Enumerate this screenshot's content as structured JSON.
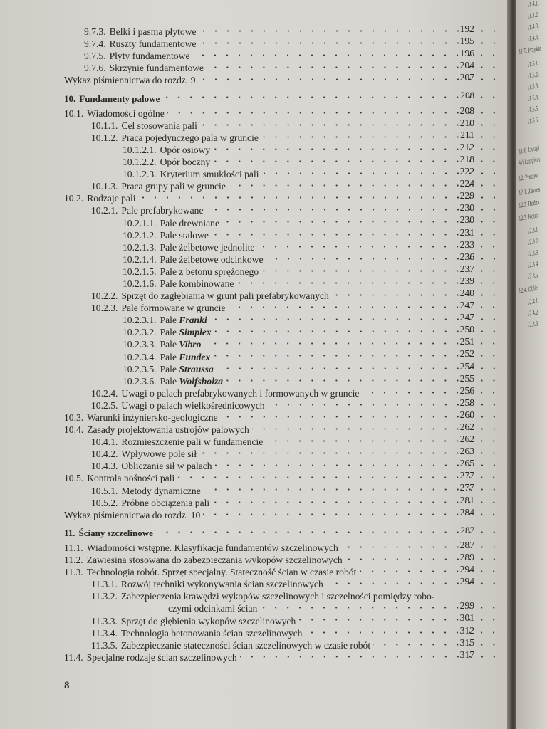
{
  "page_number": "8",
  "toc": [
    {
      "level": 1,
      "num": "9.7.3.",
      "title": "Belki i pasma płytowe",
      "page": "192"
    },
    {
      "level": 1,
      "num": "9.7.4.",
      "title": "Ruszty fundamentowe",
      "page": "195"
    },
    {
      "level": 1,
      "num": "9.7.5.",
      "title": "Płyty fundamentowe",
      "page": "196"
    },
    {
      "level": 1,
      "num": "9.7.6.",
      "title": "Skrzynie fundamentowe",
      "page": "204"
    },
    {
      "level": 0,
      "num": "",
      "title": "Wykaz piśmiennictwa do rozdz. 9",
      "page": "207"
    },
    {
      "level": 0,
      "num": "10.",
      "title": "Fundamenty palowe",
      "page": "208",
      "chapter": true
    },
    {
      "level": 0,
      "num": "10.1.",
      "title": "Wiadomości ogólne",
      "page": "208"
    },
    {
      "level": 2,
      "num": "10.1.1.",
      "title": "Cel stosowania pali",
      "page": "210"
    },
    {
      "level": 2,
      "num": "10.1.2.",
      "title": "Praca pojedynczego pala w gruncie",
      "page": "211"
    },
    {
      "level": 3,
      "num": "10.1.2.1.",
      "title": "Opór osiowy",
      "page": "212"
    },
    {
      "level": 3,
      "num": "10.1.2.2.",
      "title": "Opór boczny",
      "page": "218"
    },
    {
      "level": 3,
      "num": "10.1.2.3.",
      "title": "Kryterium smukłości pali",
      "page": "222"
    },
    {
      "level": 2,
      "num": "10.1.3.",
      "title": "Praca grupy pali w gruncie",
      "page": "224"
    },
    {
      "level": 0,
      "num": "10.2.",
      "title": "Rodzaje pali",
      "page": "229"
    },
    {
      "level": 2,
      "num": "10.2.1.",
      "title": "Pale prefabrykowane",
      "page": "230"
    },
    {
      "level": 3,
      "num": "10.2.1.1.",
      "title": "Pale drewniane",
      "page": "230"
    },
    {
      "level": 3,
      "num": "10.2.1.2.",
      "title": "Pale stalowe",
      "page": "231"
    },
    {
      "level": 3,
      "num": "10.2.1.3.",
      "title": "Pale żelbetowe jednolite",
      "page": "233"
    },
    {
      "level": 3,
      "num": "10.2.1.4.",
      "title": "Pale żelbetowe odcinkowe",
      "page": "236"
    },
    {
      "level": 3,
      "num": "10.2.1.5.",
      "title": "Pale z betonu sprężonego",
      "page": "237"
    },
    {
      "level": 3,
      "num": "10.2.1.6.",
      "title": "Pale kombinowane",
      "page": "239"
    },
    {
      "level": 2,
      "num": "10.2.2.",
      "title": "Sprzęt do zagłębiania w grunt pali prefabrykowanych",
      "page": "240"
    },
    {
      "level": 2,
      "num": "10.2.3.",
      "title": "Pale formowane w gruncie",
      "page": "247"
    },
    {
      "level": 3,
      "num": "10.2.3.1.",
      "title": "Pale",
      "italic": "Franki",
      "page": "247"
    },
    {
      "level": 3,
      "num": "10.2.3.2.",
      "title": "Pale",
      "italic": "Simplex",
      "page": "250"
    },
    {
      "level": 3,
      "num": "10.2.3.3.",
      "title": "Pale",
      "italic": "Vibro",
      "page": "251"
    },
    {
      "level": 3,
      "num": "10.2.3.4.",
      "title": "Pale",
      "italic": "Fundex",
      "page": "252"
    },
    {
      "level": 3,
      "num": "10.2.3.5.",
      "title": "Pale",
      "italic": "Straussa",
      "page": "254"
    },
    {
      "level": 3,
      "num": "10.2.3.6.",
      "title": "Pale",
      "italic": "Wolfsholza",
      "page": "255"
    },
    {
      "level": 2,
      "num": "10.2.4.",
      "title": "Uwagi o palach prefabrykowanych i formowanych w gruncie",
      "page": "256"
    },
    {
      "level": 2,
      "num": "10.2.5.",
      "title": "Uwagi o palach wielkośrednicowych",
      "page": "258"
    },
    {
      "level": 0,
      "num": "10.3.",
      "title": "Warunki inżyniersko-geologiczne",
      "page": "260"
    },
    {
      "level": 0,
      "num": "10.4.",
      "title": "Zasady projektowania ustrojów palowych",
      "page": "262"
    },
    {
      "level": 2,
      "num": "10.4.1.",
      "title": "Rozmieszczenie pali w fundamencie",
      "page": "262"
    },
    {
      "level": 2,
      "num": "10.4.2.",
      "title": "Wpływowe pole sił",
      "page": "263"
    },
    {
      "level": 2,
      "num": "10.4.3.",
      "title": "Obliczanie sił w palach",
      "page": "265"
    },
    {
      "level": 0,
      "num": "10.5.",
      "title": "Kontrola nośności pali",
      "page": "277"
    },
    {
      "level": 2,
      "num": "10.5.1.",
      "title": "Metody dynamiczne",
      "page": "277"
    },
    {
      "level": 2,
      "num": "10.5.2.",
      "title": "Próbne obciążenia pali",
      "page": "281"
    },
    {
      "level": 0,
      "num": "",
      "title": "Wykaz piśmiennictwa do rozdz. 10",
      "page": "284"
    },
    {
      "level": 0,
      "num": "11.",
      "title": "Ściany szczelinowe",
      "page": "287",
      "chapter": true
    },
    {
      "level": 0,
      "num": "11.1.",
      "title": "Wiadomości wstępne. Klasyfikacja fundamentów szczelinowych",
      "page": "287"
    },
    {
      "level": 0,
      "num": "11.2.",
      "title": "Zawiesina stosowana do zabezpieczania wykopów szczelinowych",
      "page": "289"
    },
    {
      "level": 0,
      "num": "11.3.",
      "title": "Technologia robót. Sprzęt specjalny. Stateczność ścian w czasie robót",
      "page": "294"
    },
    {
      "level": 2,
      "num": "11.3.1.",
      "title": "Rozwój techniki wykonywania ścian szczelinowych",
      "page": "294"
    },
    {
      "level": 2,
      "num": "11.3.2.",
      "title": "Zabezpieczenia krawędzi wykopów szczelinowych i szczelności pomiędzy robo-",
      "page": ""
    },
    {
      "level": 4,
      "num": "",
      "title": "czymi odcinkami ścian",
      "page": "299"
    },
    {
      "level": 2,
      "num": "11.3.3.",
      "title": "Sprzęt do głębienia wykopów szczelinowych",
      "page": "301"
    },
    {
      "level": 2,
      "num": "11.3.4.",
      "title": "Technologia betonowania ścian szczelinowych",
      "page": "312"
    },
    {
      "level": 2,
      "num": "11.3.5.",
      "title": "Zabezpieczanie stateczności ścian szczelinowych w czasie robót",
      "page": "315"
    },
    {
      "level": 0,
      "num": "11.4.",
      "title": "Specjalne rodzaje ścian szczelinowych",
      "page": "317"
    }
  ],
  "next_page_fragments": [
    "11.4.1.",
    "11.4.2.",
    "11.4.3.",
    "11.4.4.",
    "11.5. Przykła",
    "11.5.1.",
    "11.5.2.",
    "11.5.3.",
    "11.5.4.",
    "11.5.5.",
    "11.5.6.",
    "11.6. Uwagi",
    "Wykaz piśm",
    "12. Prusow",
    "12.1. Zakres",
    "12.2. Rodza",
    "12.3. Konst",
    "12.3.1",
    "12.3.2",
    "12.3.3",
    "12.3.4",
    "12.3.5",
    "12.4. Oblic",
    "12.4.1",
    "12.4.2",
    "12.4.3"
  ]
}
